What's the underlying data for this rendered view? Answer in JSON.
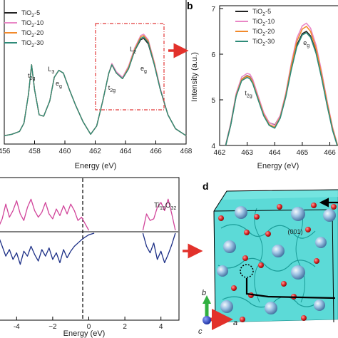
{
  "panel_labels": {
    "b": "b",
    "d": "d"
  },
  "legend_entries": [
    {
      "main": "TiO",
      "sub": "2",
      "suffix": "-5"
    },
    {
      "main": "TiO",
      "sub": "2",
      "suffix": "-10"
    },
    {
      "main": "TiO",
      "sub": "2",
      "suffix": "-20"
    },
    {
      "main": "TiO",
      "sub": "2",
      "suffix": "-30"
    }
  ],
  "formula": {
    "p1": "Ti",
    "s1": "15",
    "p2": "O",
    "s2": "32"
  },
  "crystal": {
    "facet_label": "(001)",
    "axes": {
      "a": "a",
      "b": "b",
      "c": "c"
    }
  },
  "colors": {
    "TiO2-5": "#222222",
    "TiO2-10": "#e987c6",
    "TiO2-20": "#f28a2c",
    "TiO2-30": "#2e8b79",
    "dos_up": "#d1449a",
    "dos_down": "#1c2f86",
    "highlight_box": "#e23a3a",
    "arrow": "#e2312b",
    "isosurface": "#3fd4d0"
  },
  "chart_data": [
    {
      "type": "line",
      "panel": "a",
      "xlabel": "Energy (eV)",
      "ylabel": "",
      "xlim": [
        456,
        468
      ],
      "xticks": [
        456,
        458,
        460,
        462,
        464,
        466,
        468
      ],
      "xtick_labels": [
        "456",
        "458",
        "460",
        "462",
        "464",
        "466",
        "468"
      ],
      "peak_labels": [
        {
          "main": "t",
          "sub": "2g",
          "x": 457.8
        },
        {
          "main": "L",
          "sub": "3",
          "x": 459.1
        },
        {
          "main": "e",
          "sub": "g",
          "x": 459.6
        },
        {
          "main": "t",
          "sub": "2g",
          "x": 463.1
        },
        {
          "main": "L",
          "sub": "2",
          "x": 464.5
        },
        {
          "main": "e",
          "sub": "g",
          "x": 465.2
        }
      ],
      "series": [
        {
          "name": "TiO2-5",
          "x": [
            456.0,
            456.5,
            457.0,
            457.3,
            457.6,
            457.8,
            458.0,
            458.3,
            458.6,
            459.0,
            459.3,
            459.6,
            459.9,
            460.3,
            460.7,
            461.2,
            461.7,
            462.1,
            462.5,
            462.9,
            463.1,
            463.4,
            463.8,
            464.2,
            464.6,
            465.0,
            465.2,
            465.5,
            465.9,
            466.3,
            466.8,
            467.3,
            468.0
          ],
          "y": [
            0.05,
            0.06,
            0.08,
            0.14,
            0.35,
            0.56,
            0.38,
            0.2,
            0.19,
            0.3,
            0.47,
            0.52,
            0.5,
            0.38,
            0.27,
            0.15,
            0.06,
            0.12,
            0.3,
            0.5,
            0.56,
            0.5,
            0.46,
            0.53,
            0.66,
            0.74,
            0.75,
            0.71,
            0.56,
            0.38,
            0.2,
            0.1,
            0.05
          ]
        },
        {
          "name": "TiO2-10",
          "x": [
            456.0,
            456.5,
            457.0,
            457.3,
            457.6,
            457.8,
            458.0,
            458.3,
            458.6,
            459.0,
            459.3,
            459.6,
            459.9,
            460.3,
            460.7,
            461.2,
            461.7,
            462.1,
            462.5,
            462.9,
            463.1,
            463.4,
            463.8,
            464.2,
            464.6,
            465.0,
            465.2,
            465.5,
            465.9,
            466.3,
            466.8,
            467.3,
            468.0
          ],
          "y": [
            0.05,
            0.06,
            0.08,
            0.14,
            0.35,
            0.56,
            0.38,
            0.2,
            0.19,
            0.3,
            0.47,
            0.52,
            0.5,
            0.38,
            0.27,
            0.15,
            0.06,
            0.12,
            0.3,
            0.5,
            0.57,
            0.51,
            0.47,
            0.55,
            0.68,
            0.77,
            0.78,
            0.74,
            0.58,
            0.39,
            0.2,
            0.1,
            0.05
          ]
        },
        {
          "name": "TiO2-20",
          "x": [
            456.0,
            456.5,
            457.0,
            457.3,
            457.6,
            457.8,
            458.0,
            458.3,
            458.6,
            459.0,
            459.3,
            459.6,
            459.9,
            460.3,
            460.7,
            461.2,
            461.7,
            462.1,
            462.5,
            462.9,
            463.1,
            463.4,
            463.8,
            464.2,
            464.6,
            465.0,
            465.2,
            465.5,
            465.9,
            466.3,
            466.8,
            467.3,
            468.0
          ],
          "y": [
            0.05,
            0.06,
            0.08,
            0.14,
            0.35,
            0.56,
            0.38,
            0.2,
            0.19,
            0.3,
            0.47,
            0.52,
            0.5,
            0.38,
            0.27,
            0.15,
            0.06,
            0.12,
            0.3,
            0.5,
            0.56,
            0.5,
            0.46,
            0.54,
            0.67,
            0.76,
            0.77,
            0.73,
            0.57,
            0.38,
            0.2,
            0.1,
            0.05
          ]
        },
        {
          "name": "TiO2-30",
          "x": [
            456.0,
            456.5,
            457.0,
            457.3,
            457.6,
            457.8,
            458.0,
            458.3,
            458.6,
            459.0,
            459.3,
            459.6,
            459.9,
            460.3,
            460.7,
            461.2,
            461.7,
            462.1,
            462.5,
            462.9,
            463.1,
            463.4,
            463.8,
            464.2,
            464.6,
            465.0,
            465.2,
            465.5,
            465.9,
            466.3,
            466.8,
            467.3,
            468.0
          ],
          "y": [
            0.05,
            0.06,
            0.08,
            0.14,
            0.35,
            0.56,
            0.38,
            0.2,
            0.19,
            0.3,
            0.47,
            0.52,
            0.5,
            0.38,
            0.27,
            0.15,
            0.06,
            0.12,
            0.3,
            0.5,
            0.56,
            0.5,
            0.46,
            0.53,
            0.66,
            0.75,
            0.76,
            0.72,
            0.56,
            0.38,
            0.2,
            0.1,
            0.05
          ]
        }
      ]
    },
    {
      "type": "line",
      "panel": "b",
      "xlabel": "Energy (eV)",
      "ylabel": "Intensity (a.u.)",
      "xlim": [
        462,
        466.4
      ],
      "ylim": [
        4.0,
        7.0
      ],
      "xticks": [
        462,
        463,
        464,
        465,
        466
      ],
      "xtick_labels": [
        "462",
        "463",
        "464",
        "465",
        "466"
      ],
      "yticks": [
        4,
        5,
        6,
        7
      ],
      "ytick_labels": [
        "4",
        "5",
        "6",
        "7"
      ],
      "peak_labels": [
        {
          "main": "t",
          "sub": "2g",
          "x": 463.05,
          "y": 5.1
        },
        {
          "main": "e",
          "sub": "g",
          "x": 465.15,
          "y": 6.2
        }
      ],
      "series": [
        {
          "name": "TiO2-5",
          "x": [
            462.0,
            462.2,
            462.4,
            462.6,
            462.8,
            463.0,
            463.1,
            463.2,
            463.4,
            463.6,
            463.8,
            464.0,
            464.2,
            464.4,
            464.6,
            464.8,
            465.0,
            465.15,
            465.3,
            465.5,
            465.7,
            465.9,
            466.1,
            466.3
          ],
          "y": [
            3.75,
            3.95,
            4.45,
            5.1,
            5.45,
            5.53,
            5.5,
            5.4,
            5.05,
            4.7,
            4.5,
            4.45,
            4.65,
            5.1,
            5.7,
            6.2,
            6.45,
            6.5,
            6.4,
            6.05,
            5.5,
            4.9,
            4.35,
            3.95
          ]
        },
        {
          "name": "TiO2-10",
          "x": [
            462.0,
            462.2,
            462.4,
            462.6,
            462.8,
            463.0,
            463.1,
            463.2,
            463.4,
            463.6,
            463.8,
            464.0,
            464.2,
            464.4,
            464.6,
            464.8,
            465.0,
            465.15,
            465.3,
            465.5,
            465.7,
            465.9,
            466.1,
            466.3
          ],
          "y": [
            3.75,
            3.97,
            4.48,
            5.14,
            5.5,
            5.58,
            5.56,
            5.45,
            5.08,
            4.72,
            4.5,
            4.44,
            4.66,
            5.14,
            5.8,
            6.35,
            6.62,
            6.68,
            6.57,
            6.2,
            5.62,
            4.98,
            4.4,
            3.97
          ]
        },
        {
          "name": "TiO2-20",
          "x": [
            462.0,
            462.2,
            462.4,
            462.6,
            462.8,
            463.0,
            463.1,
            463.2,
            463.4,
            463.6,
            463.8,
            464.0,
            464.2,
            464.4,
            464.6,
            464.8,
            465.0,
            465.15,
            465.3,
            465.5,
            465.7,
            465.9,
            466.1,
            466.3
          ],
          "y": [
            3.75,
            3.95,
            4.45,
            5.1,
            5.45,
            5.52,
            5.49,
            5.39,
            5.03,
            4.68,
            4.46,
            4.4,
            4.62,
            5.1,
            5.75,
            6.28,
            6.55,
            6.61,
            6.5,
            6.13,
            5.56,
            4.94,
            4.37,
            3.96
          ]
        },
        {
          "name": "TiO2-30",
          "x": [
            462.0,
            462.2,
            462.4,
            462.6,
            462.8,
            463.0,
            463.1,
            463.2,
            463.4,
            463.6,
            463.8,
            464.0,
            464.2,
            464.4,
            464.6,
            464.8,
            465.0,
            465.15,
            465.3,
            465.5,
            465.7,
            465.9,
            466.1,
            466.3
          ],
          "y": [
            3.75,
            3.95,
            4.44,
            5.08,
            5.42,
            5.49,
            5.46,
            5.36,
            5.0,
            4.65,
            4.44,
            4.38,
            4.6,
            5.06,
            5.66,
            6.16,
            6.42,
            6.47,
            6.37,
            6.02,
            5.48,
            4.88,
            4.33,
            3.94
          ]
        }
      ]
    },
    {
      "type": "line",
      "panel": "c",
      "xlabel": "Energy (eV)",
      "ylabel": "",
      "xlim": [
        -5,
        5
      ],
      "xticks": [
        -4,
        -2,
        0,
        2,
        4
      ],
      "xtick_labels": [
        "-4",
        "−2",
        "0",
        "2",
        "4"
      ],
      "fermi_level": 0,
      "series": [
        {
          "name": "spin-up",
          "x": [
            -5.0,
            -4.8,
            -4.6,
            -4.4,
            -4.2,
            -4.0,
            -3.8,
            -3.6,
            -3.4,
            -3.2,
            -3.0,
            -2.8,
            -2.6,
            -2.4,
            -2.2,
            -2.0,
            -1.8,
            -1.6,
            -1.4,
            -1.2,
            -1.0,
            -0.8,
            -0.6,
            -0.4,
            -0.2,
            0.0
          ],
          "y": [
            0.1,
            0.35,
            0.8,
            0.4,
            0.6,
            0.9,
            0.5,
            0.3,
            0.7,
            0.95,
            0.6,
            0.4,
            0.55,
            0.85,
            0.5,
            0.35,
            0.65,
            0.45,
            0.75,
            0.5,
            0.8,
            0.6,
            0.3,
            0.4,
            0.2,
            0.0
          ]
        },
        {
          "name": "spin-up-cb",
          "x": [
            3.0,
            3.2,
            3.4,
            3.6,
            3.8,
            4.0,
            4.2,
            4.4,
            4.6,
            4.8
          ],
          "y": [
            0.0,
            0.5,
            0.3,
            0.35,
            0.7,
            0.85,
            0.6,
            0.95,
            0.5,
            0.0
          ]
        },
        {
          "name": "spin-down",
          "x": [
            -5.0,
            -4.8,
            -4.6,
            -4.4,
            -4.2,
            -4.0,
            -3.8,
            -3.6,
            -3.4,
            -3.2,
            -3.0,
            -2.8,
            -2.6,
            -2.4,
            -2.2,
            -2.0,
            -1.8,
            -1.6,
            -1.4,
            -1.2,
            -1.0,
            -0.8,
            -0.6,
            -0.4,
            -0.2,
            0.0,
            0.3
          ],
          "y": [
            -0.1,
            -0.4,
            -0.7,
            -0.5,
            -0.8,
            -0.6,
            -0.95,
            -0.55,
            -0.7,
            -0.4,
            -0.65,
            -0.85,
            -0.5,
            -0.7,
            -0.45,
            -0.8,
            -0.6,
            -0.9,
            -0.5,
            -0.75,
            -0.55,
            -0.4,
            -0.3,
            -0.2,
            -0.12,
            -0.05,
            0.0
          ]
        },
        {
          "name": "spin-down-cb",
          "x": [
            3.0,
            3.2,
            3.4,
            3.6,
            3.8,
            4.0,
            4.2,
            4.4,
            4.6,
            4.8
          ],
          "y": [
            0.0,
            -0.4,
            -0.6,
            -0.3,
            -0.8,
            -0.55,
            -0.9,
            -0.65,
            -0.35,
            0.0
          ]
        }
      ]
    }
  ]
}
